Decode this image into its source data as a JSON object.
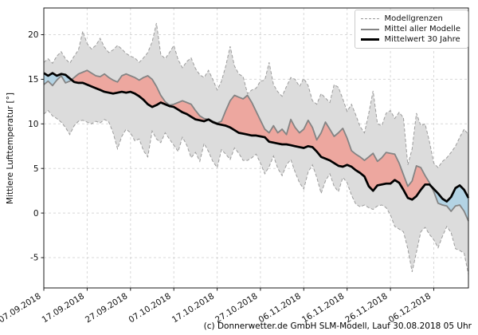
{
  "figure": {
    "caption": "(c) Donnerwetter.de GmbH SLM-Modell, Lauf 30.08.2018 05 Uhr"
  },
  "chart_data": {
    "type": "line",
    "title": "",
    "xlabel": "",
    "ylabel": "Mittlere Lufttemperatur [°]",
    "ylim": [
      -8.4,
      23.0
    ],
    "yticks": [
      -5,
      0,
      5,
      10,
      15,
      20
    ],
    "xtick_days": [
      0,
      10,
      20,
      30,
      40,
      50,
      60,
      70,
      80,
      90
    ],
    "xtick_labels": [
      "07.09.2018",
      "17.09.2018",
      "27.09.2018",
      "07.10.2018",
      "17.10.2018",
      "27.10.2018",
      "06.11.2018",
      "16.11.2018",
      "26.11.2018",
      "06.12.2018"
    ],
    "x_start_date": "07.09.2018",
    "x_step_days": 1,
    "n_points": 99,
    "grid": true,
    "legend_position": "upper right",
    "legend": [
      {
        "label": "Modellgrenzen",
        "sample": "dashed-gray"
      },
      {
        "label": "Mittel aller Modelle",
        "sample": "solid-gray"
      },
      {
        "label": "Mittelwert 30 Jahre",
        "sample": "thick-black"
      }
    ],
    "colors": {
      "band_fill": "#dcdcdc",
      "bound_line": "#9c9c9c",
      "model_mean_line": "#848484",
      "climate_mean_line": "#000000",
      "fill_above_climate": "#eda79f",
      "fill_below_climate": "#b3d3e4",
      "grid_line": "#d8d8d8",
      "axis": "#1a1a1a"
    },
    "series": [
      {
        "name": "Modellgrenzen (obere Grenze)",
        "role": "upper_bound",
        "style": "dashed",
        "values": [
          16.9,
          17.3,
          16.8,
          17.6,
          18.1,
          17.3,
          16.8,
          17.6,
          18.3,
          20.4,
          19.0,
          18.4,
          18.8,
          19.6,
          18.6,
          18.0,
          18.3,
          18.8,
          18.4,
          17.9,
          17.6,
          17.4,
          16.9,
          17.4,
          18.0,
          19.2,
          21.3,
          17.8,
          17.3,
          18.0,
          18.8,
          17.2,
          16.3,
          17.0,
          17.4,
          16.2,
          15.5,
          15.2,
          16.0,
          15.0,
          13.8,
          14.8,
          16.5,
          18.7,
          16.5,
          15.6,
          15.3,
          13.4,
          13.8,
          14.0,
          14.8,
          14.9,
          16.9,
          14.4,
          13.6,
          13.1,
          14.2,
          15.2,
          15.0,
          14.2,
          15.1,
          14.3,
          12.6,
          12.2,
          13.4,
          12.9,
          12.4,
          14.4,
          14.1,
          12.8,
          11.4,
          12.2,
          11.0,
          9.7,
          9.0,
          11.2,
          13.7,
          10.0,
          9.8,
          11.2,
          11.5,
          10.6,
          11.3,
          10.7,
          5.4,
          7.2,
          11.2,
          9.8,
          10.0,
          8.0,
          5.6,
          5.1,
          5.8,
          6.2,
          6.8,
          7.5,
          8.5,
          9.4,
          8.8
        ]
      },
      {
        "name": "Modellgrenzen (untere Grenze)",
        "role": "lower_bound",
        "style": "dashed",
        "values": [
          11.1,
          11.5,
          10.9,
          10.6,
          10.2,
          9.6,
          8.8,
          9.8,
          10.3,
          10.4,
          10.2,
          10.0,
          10.3,
          10.1,
          10.5,
          10.2,
          9.0,
          7.2,
          8.6,
          9.4,
          9.0,
          8.1,
          8.3,
          7.0,
          6.3,
          9.2,
          8.3,
          7.9,
          9.0,
          8.3,
          7.6,
          6.9,
          8.5,
          7.6,
          6.2,
          6.8,
          5.8,
          7.8,
          6.9,
          5.8,
          5.1,
          7.1,
          6.6,
          6.0,
          7.3,
          6.7,
          5.9,
          5.9,
          6.2,
          6.6,
          5.6,
          4.4,
          5.2,
          6.4,
          5.0,
          4.2,
          5.4,
          6.0,
          4.6,
          3.4,
          2.7,
          4.6,
          5.4,
          4.0,
          2.2,
          3.6,
          4.4,
          3.0,
          2.4,
          4.0,
          3.4,
          2.0,
          1.0,
          0.7,
          0.9,
          0.6,
          0.4,
          0.8,
          0.9,
          0.6,
          -0.2,
          -1.5,
          -1.8,
          -2.1,
          -4.0,
          -6.6,
          -4.4,
          -2.1,
          -1.6,
          -2.4,
          -3.0,
          -3.9,
          -2.6,
          -1.5,
          -2.2,
          -4.0,
          -4.2,
          -4.5,
          -6.9
        ]
      },
      {
        "name": "Mittel aller Modelle",
        "role": "model_mean",
        "style": "solid",
        "values": [
          14.4,
          14.8,
          14.3,
          14.9,
          15.4,
          14.6,
          14.8,
          15.2,
          15.6,
          15.8,
          16.0,
          15.7,
          15.4,
          15.3,
          15.6,
          15.2,
          14.9,
          14.7,
          15.4,
          15.6,
          15.4,
          15.2,
          14.9,
          15.2,
          15.4,
          15.0,
          14.2,
          13.2,
          12.5,
          12.1,
          12.2,
          12.4,
          12.6,
          12.4,
          12.2,
          11.5,
          10.9,
          10.6,
          10.5,
          10.3,
          10.1,
          10.3,
          11.5,
          12.6,
          13.2,
          13.0,
          12.8,
          13.2,
          12.4,
          11.4,
          10.4,
          9.4,
          9.0,
          9.8,
          9.0,
          9.4,
          8.8,
          10.5,
          9.6,
          9.0,
          9.4,
          10.4,
          9.6,
          8.2,
          9.0,
          10.2,
          9.4,
          8.6,
          9.0,
          9.5,
          8.4,
          7.0,
          6.6,
          6.3,
          5.9,
          6.3,
          6.7,
          5.8,
          6.2,
          6.8,
          6.7,
          6.6,
          5.6,
          4.3,
          3.0,
          3.6,
          5.3,
          5.1,
          4.2,
          3.4,
          2.4,
          1.1,
          0.9,
          0.8,
          0.2,
          0.8,
          0.9,
          0.2,
          -0.9
        ]
      },
      {
        "name": "Mittelwert 30 Jahre",
        "role": "climate_mean",
        "style": "solid-thick",
        "values": [
          15.7,
          15.4,
          15.7,
          15.4,
          15.6,
          15.5,
          15.1,
          14.7,
          14.6,
          14.6,
          14.4,
          14.2,
          14.0,
          13.8,
          13.6,
          13.5,
          13.4,
          13.5,
          13.6,
          13.5,
          13.6,
          13.4,
          13.1,
          12.7,
          12.2,
          11.9,
          12.1,
          12.4,
          12.2,
          12.0,
          11.9,
          11.6,
          11.3,
          11.1,
          10.8,
          10.5,
          10.4,
          10.3,
          10.5,
          10.2,
          10.0,
          9.9,
          9.8,
          9.6,
          9.3,
          9.0,
          8.9,
          8.8,
          8.7,
          8.7,
          8.6,
          8.5,
          8.0,
          7.9,
          7.8,
          7.7,
          7.7,
          7.6,
          7.5,
          7.4,
          7.3,
          7.5,
          7.4,
          6.9,
          6.3,
          6.1,
          5.9,
          5.6,
          5.3,
          5.2,
          5.4,
          5.2,
          4.8,
          4.5,
          4.1,
          3.0,
          2.5,
          3.1,
          3.2,
          3.3,
          3.3,
          3.7,
          3.4,
          2.6,
          1.7,
          1.5,
          1.9,
          2.6,
          3.2,
          3.2,
          2.7,
          2.2,
          1.6,
          1.3,
          1.8,
          2.8,
          3.1,
          2.6,
          1.7
        ]
      }
    ]
  }
}
